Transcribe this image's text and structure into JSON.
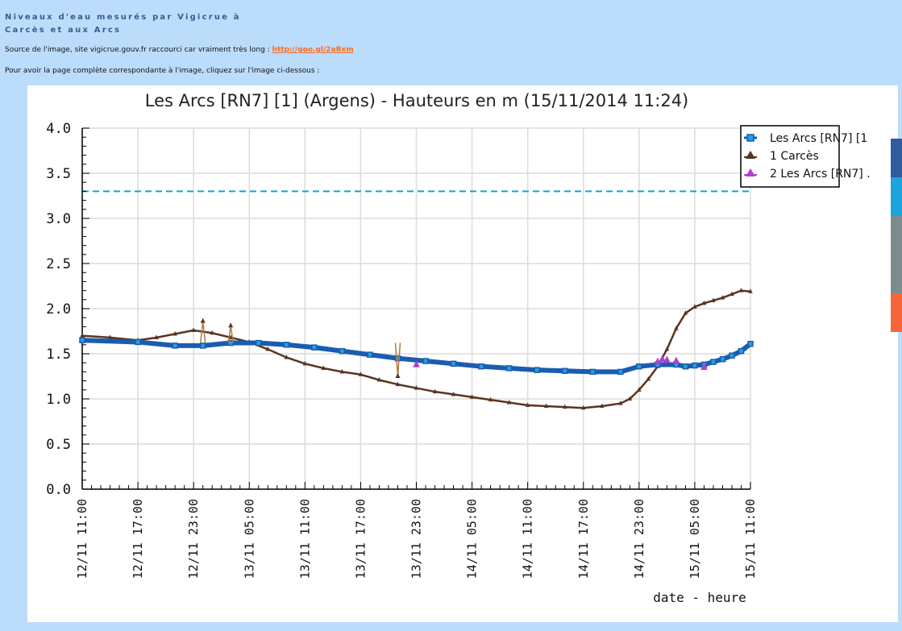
{
  "header": {
    "title_line1": "Niveaux d'eau mesurés par Vigicrue à",
    "title_line2": "Carcès et aux Arcs"
  },
  "source": {
    "prefix": "Source de l'image, site vigicrue.gouv.fr raccourci car vraiment très long : ",
    "link_text": "http://goo.gl/2aBxm"
  },
  "hint": "Pour avoir la page complète correspondante à l'image, cliquez sur l'image ci-dessous :",
  "side_bar_colors": [
    "#2f5c9c",
    "#1ea4dc",
    "#7c8c8c",
    "#f7653a"
  ],
  "chart_data": {
    "type": "line",
    "title": "Les Arcs [RN7] [1] (Argens) - Hauteurs en m (15/11/2014 11:24)",
    "xlabel": "date - heure",
    "ylabel": "",
    "ylim": [
      0,
      4
    ],
    "yticks": [
      "0.0",
      "0.5",
      "1.0",
      "1.5",
      "2.0",
      "2.5",
      "3.0",
      "3.5",
      "4.0"
    ],
    "xlim_hours": [
      0,
      72
    ],
    "x_tick_labels": [
      "12/11 11:00",
      "12/11 17:00",
      "12/11 23:00",
      "13/11 05:00",
      "13/11 11:00",
      "13/11 17:00",
      "13/11 23:00",
      "14/11 05:00",
      "14/11 11:00",
      "14/11 17:00",
      "14/11 23:00",
      "15/11 05:00",
      "15/11 11:00"
    ],
    "grid": true,
    "legend_position": "top-right",
    "threshold": {
      "value": 3.3,
      "color": "#1aa0d0",
      "style": "dashed"
    },
    "series": [
      {
        "name": "Les Arcs [RN7] [1",
        "color": "#1a5cb0",
        "marker": "square",
        "x": [
          0,
          6,
          10,
          13,
          16,
          19,
          22,
          25,
          28,
          31,
          34,
          37,
          40,
          43,
          46,
          49,
          52,
          55,
          58,
          60,
          62,
          64,
          65,
          66,
          67,
          68,
          69,
          70,
          71,
          72
        ],
        "y": [
          1.65,
          1.63,
          1.59,
          1.59,
          1.62,
          1.62,
          1.6,
          1.57,
          1.53,
          1.49,
          1.45,
          1.42,
          1.39,
          1.36,
          1.34,
          1.32,
          1.31,
          1.3,
          1.3,
          1.36,
          1.38,
          1.38,
          1.36,
          1.37,
          1.38,
          1.41,
          1.44,
          1.48,
          1.53,
          1.61
        ]
      },
      {
        "name": "1 Carcès",
        "color": "#5a3420",
        "marker": "triangle",
        "x": [
          0,
          3,
          6,
          8,
          10,
          12,
          14,
          16,
          18,
          20,
          22,
          24,
          26,
          28,
          30,
          32,
          34,
          36,
          38,
          40,
          42,
          44,
          46,
          48,
          50,
          52,
          54,
          56,
          58,
          59,
          60,
          61,
          62,
          63,
          64,
          65,
          66,
          67,
          68,
          69,
          70,
          71,
          72
        ],
        "y": [
          1.7,
          1.68,
          1.65,
          1.68,
          1.72,
          1.76,
          1.73,
          1.68,
          1.63,
          1.55,
          1.46,
          1.39,
          1.34,
          1.3,
          1.27,
          1.21,
          1.16,
          1.12,
          1.08,
          1.05,
          1.02,
          0.99,
          0.96,
          0.93,
          0.92,
          0.91,
          0.9,
          0.92,
          0.95,
          1.0,
          1.1,
          1.22,
          1.36,
          1.55,
          1.78,
          1.95,
          2.02,
          2.06,
          2.09,
          2.12,
          2.16,
          2.2,
          2.19
        ]
      },
      {
        "name": "2 Les Arcs [RN7] .",
        "color": "#b040d0",
        "marker": "triangle",
        "x": [
          36,
          62,
          62.5,
          63,
          64,
          67
        ],
        "y": [
          1.38,
          1.41,
          1.44,
          1.43,
          1.42,
          1.35
        ]
      }
    ],
    "spikes": {
      "color": "#b07a40",
      "x": [
        13,
        16,
        34
      ],
      "y": [
        1.86,
        1.81,
        1.25
      ]
    }
  }
}
